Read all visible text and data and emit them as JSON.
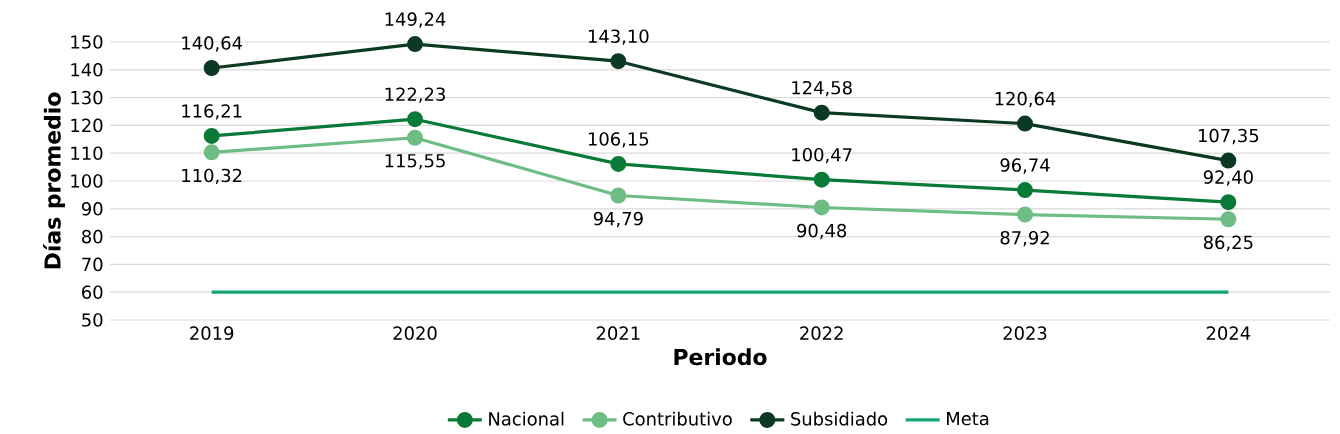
{
  "chart_data": {
    "type": "line",
    "xlabel": "Periodo",
    "ylabel": "Días promedio",
    "categories": [
      "2019",
      "2020",
      "2021",
      "2022",
      "2023",
      "2024"
    ],
    "ylim": [
      50,
      150
    ],
    "yticks": [
      50,
      60,
      70,
      80,
      90,
      100,
      110,
      120,
      130,
      140,
      150
    ],
    "grid": "y",
    "legend": "bottom",
    "marker": "circle",
    "series": [
      {
        "name": "Nacional",
        "color": "#077a37",
        "values": [
          116.21,
          122.23,
          106.15,
          100.47,
          96.74,
          92.4
        ],
        "value_labels": [
          "116,21",
          "122,23",
          "106,15",
          "100,47",
          "96,74",
          "92,40"
        ]
      },
      {
        "name": "Contributivo",
        "color": "#6dbd85",
        "values": [
          110.32,
          115.55,
          94.79,
          90.48,
          87.92,
          86.25
        ],
        "value_labels": [
          "110,32",
          "115,55",
          "94,79",
          "90,48",
          "87,92",
          "86,25"
        ]
      },
      {
        "name": "Subsidiado",
        "color": "#0a3a22",
        "values": [
          140.64,
          149.24,
          143.1,
          124.58,
          120.64,
          107.35
        ],
        "value_labels": [
          "140,64",
          "149,24",
          "143,10",
          "124,58",
          "120,64",
          "107,35"
        ]
      },
      {
        "name": "Meta",
        "color": "#14a371",
        "marker": "none",
        "values": [
          60,
          60,
          60,
          60,
          60,
          60
        ]
      }
    ]
  }
}
